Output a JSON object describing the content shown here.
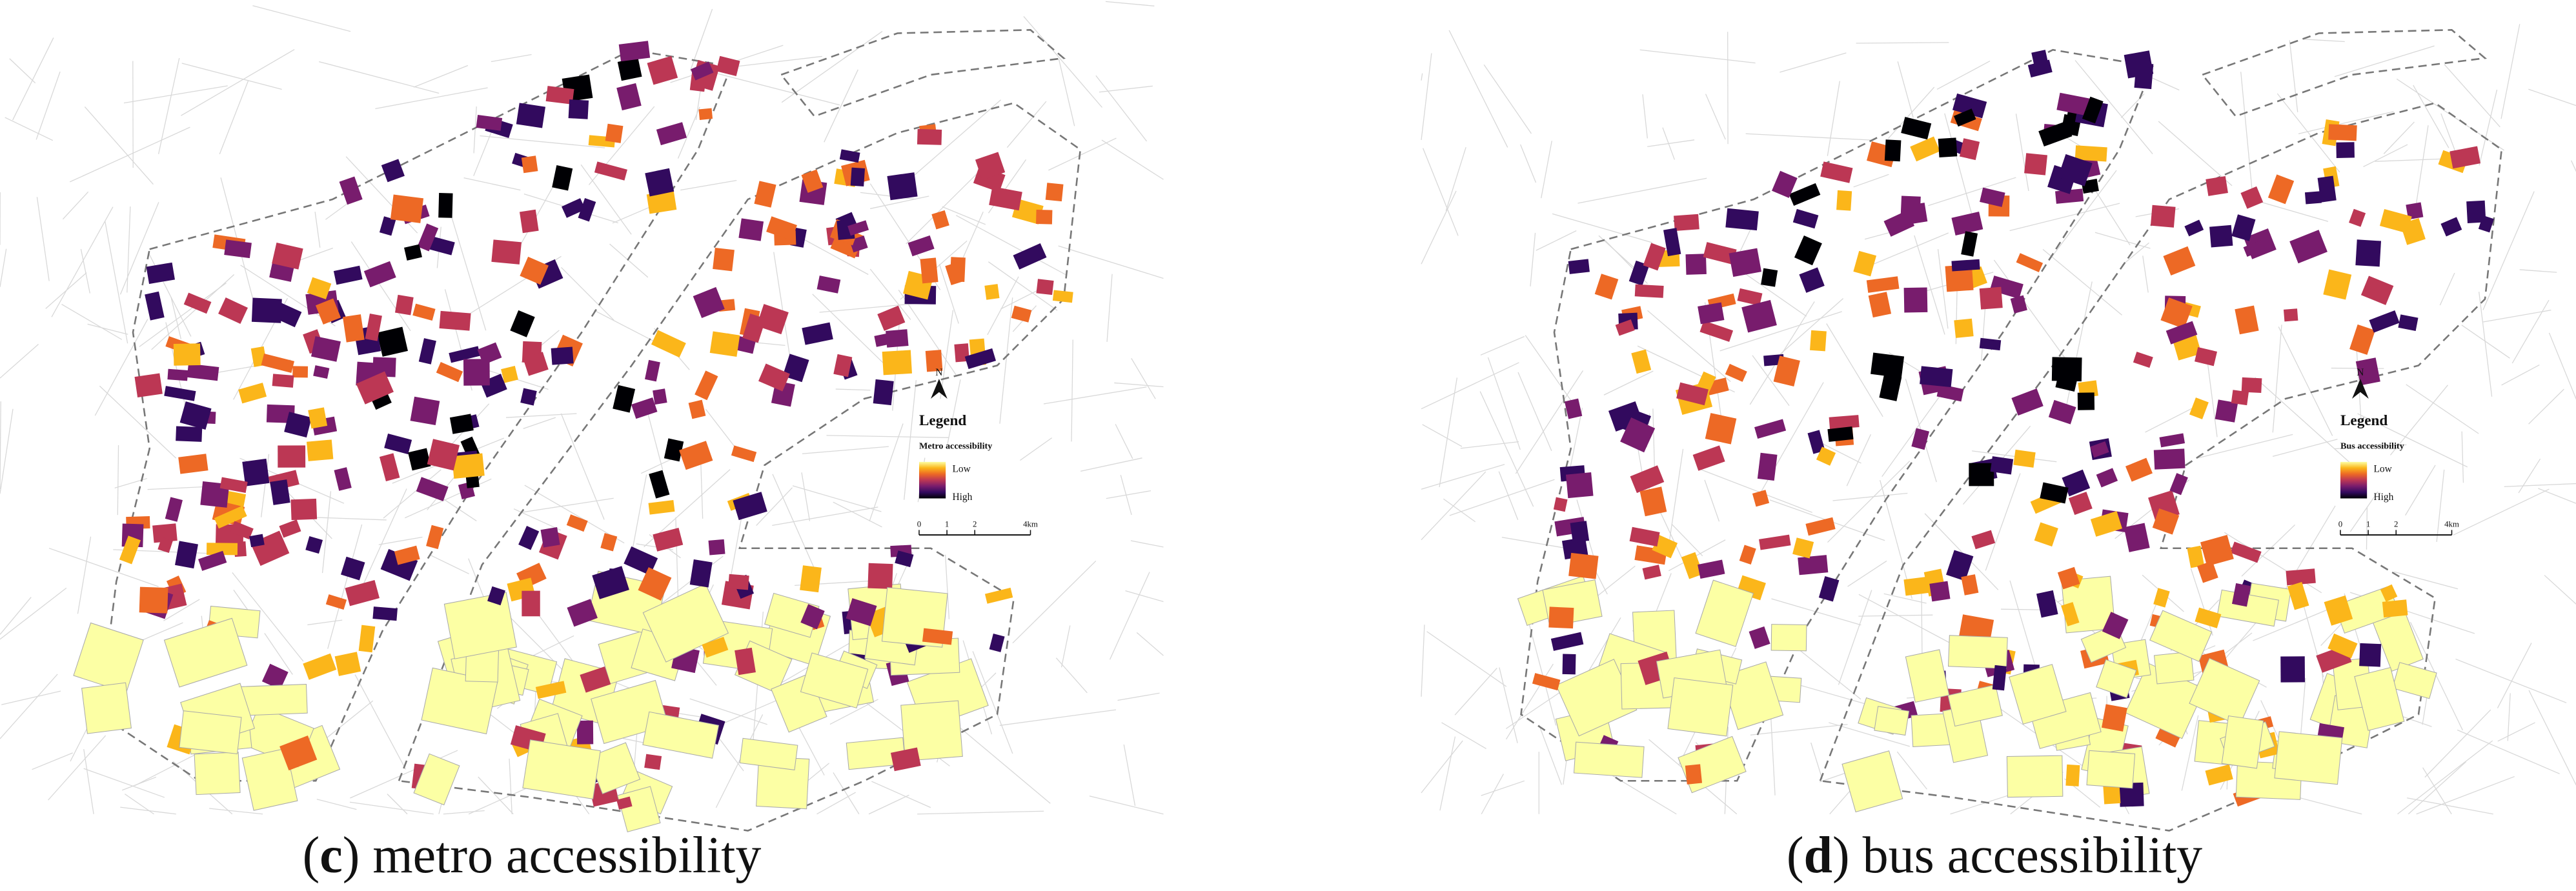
{
  "panels": [
    {
      "caption": {
        "open": "(",
        "label": "c",
        "text": ") metro accessibility"
      },
      "legend": {
        "north": "N",
        "title": "Legend",
        "name": "Metro accessibility",
        "low": "Low",
        "high": "High",
        "colors": [
          "#fcffa4",
          "#fbb61a",
          "#ed6925",
          "#bc3754",
          "#781c6d",
          "#320a5e",
          "#000004"
        ],
        "scale": [
          0,
          1,
          2,
          {
            "value": 4,
            "label": "4km"
          }
        ]
      }
    },
    {
      "caption": {
        "open": "(",
        "label": "d",
        "text": ") bus accessibility"
      },
      "legend": {
        "north": "N",
        "title": "Legend",
        "name": "Bus accessibility",
        "low": "Low",
        "high": "High",
        "colors": [
          "#fcffa4",
          "#fbb61a",
          "#ed6925",
          "#bc3754",
          "#781c6d",
          "#320a5e",
          "#000004"
        ],
        "scale": [
          0,
          1,
          2,
          {
            "value": 4,
            "label": "4km"
          }
        ]
      }
    }
  ]
}
